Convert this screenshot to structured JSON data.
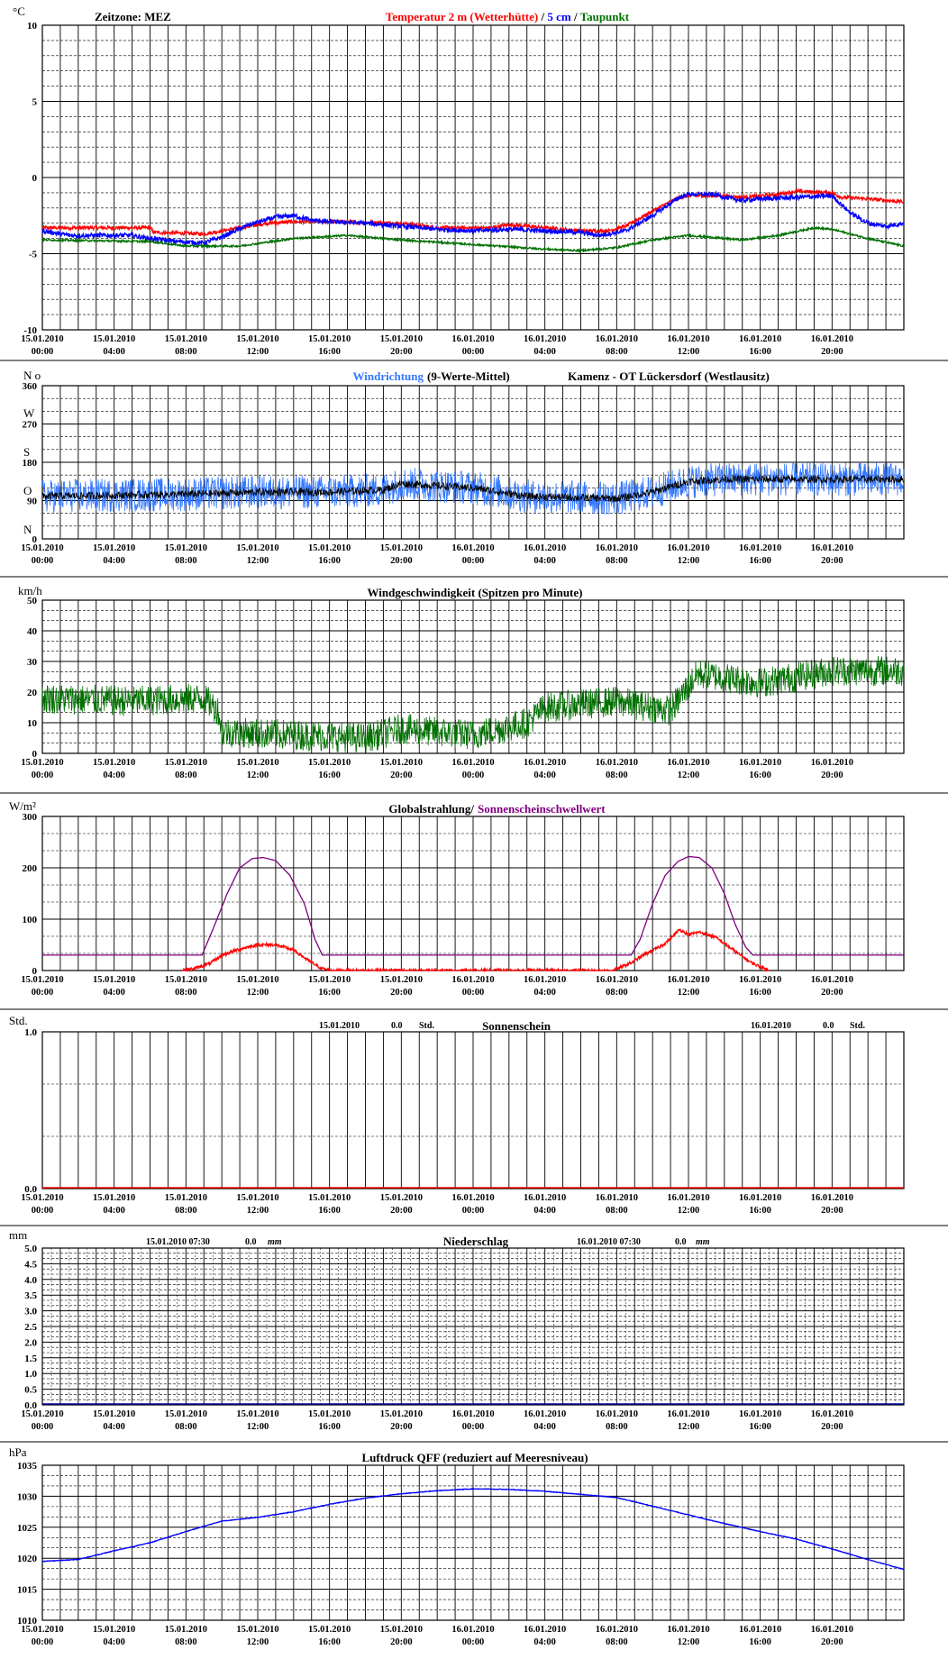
{
  "colors": {
    "red": "#ff0000",
    "blue": "#0000ff",
    "green": "#007000",
    "lightblue": "#3377ff",
    "purple": "#800080",
    "navy": "#0000a0"
  },
  "x_labels": [
    [
      "15.01.2010",
      "00:00"
    ],
    [
      "15.01.2010",
      "04:00"
    ],
    [
      "15.01.2010",
      "08:00"
    ],
    [
      "15.01.2010",
      "12:00"
    ],
    [
      "15.01.2010",
      "16:00"
    ],
    [
      "15.01.2010",
      "20:00"
    ],
    [
      "16.01.2010",
      "00:00"
    ],
    [
      "16.01.2010",
      "04:00"
    ],
    [
      "16.01.2010",
      "08:00"
    ],
    [
      "16.01.2010",
      "12:00"
    ],
    [
      "16.01.2010",
      "16:00"
    ],
    [
      "16.01.2010",
      "20:00"
    ]
  ],
  "header": {
    "zeitzone": "Zeitzone: MEZ",
    "temp_title_red": "Temperatur 2 m (Wetterhütte)",
    "temp_title_sep": " / ",
    "temp_title_blue": "5 cm",
    "temp_title_sep2": " / ",
    "temp_title_green": "Taupunkt"
  },
  "wind_header": {
    "title_blue": "Windrichtung",
    "title_rest": "(9-Werte-Mittel)",
    "station": "Kamenz - OT Lückersdorf (Westlausitz)",
    "dirs": [
      "N",
      "O",
      "S",
      "W",
      "N"
    ],
    "no_label": "N o"
  },
  "sun_info": {
    "d1": "15.01.2010",
    "v1": "0.0",
    "u1": "Std.",
    "d2": "16.01.2010",
    "v2": "0.0",
    "u2": "Std."
  },
  "rain_info": {
    "d1": "15.01.2010 07:30",
    "v1": "0.0",
    "u1": "mm",
    "d2": "16.01.2010 07:30",
    "v2": "0.0",
    "u2": "mm"
  },
  "chart_data": [
    {
      "type": "line",
      "unit": "°C",
      "ylim": [
        -10,
        10
      ],
      "yticks": [
        "10",
        "5",
        "0",
        "-5",
        "-10"
      ],
      "ytick_values": [
        10,
        5,
        0,
        -5,
        -10
      ],
      "xlim_hours": [
        0,
        48
      ],
      "series": [
        {
          "name": "Temperatur 2 m (Wetterhütte)",
          "color": "#ff0000",
          "noise": 0.12,
          "x": [
            0,
            6,
            6.2,
            9,
            9.5,
            11,
            12.5,
            14,
            16,
            20,
            22,
            25,
            26,
            28,
            30,
            31.5,
            32.5,
            34,
            35.5,
            36,
            38,
            39,
            41,
            42,
            44,
            44.5,
            46,
            48
          ],
          "y": [
            -3.3,
            -3.3,
            -3.6,
            -3.7,
            -3.6,
            -3.3,
            -3.0,
            -2.9,
            -2.9,
            -3.0,
            -3.3,
            -3.3,
            -3.1,
            -3.3,
            -3.5,
            -3.5,
            -3.2,
            -2.2,
            -1.3,
            -1.2,
            -1.2,
            -1.3,
            -1.1,
            -0.9,
            -1.0,
            -1.3,
            -1.4,
            -1.6
          ]
        },
        {
          "name": "5 cm",
          "color": "#0000ff",
          "noise": 0.15,
          "x": [
            0,
            1.5,
            5,
            6,
            7.5,
            9,
            10,
            11.5,
            13,
            14,
            15,
            16,
            18,
            20,
            22,
            24,
            26,
            28,
            30,
            31,
            32.5,
            34,
            35.5,
            36,
            37.5,
            38,
            39,
            40,
            44,
            45,
            46,
            47,
            48
          ],
          "y": [
            -3.5,
            -3.8,
            -3.8,
            -4.0,
            -4.2,
            -4.3,
            -3.9,
            -3.1,
            -2.6,
            -2.5,
            -2.8,
            -2.9,
            -3.0,
            -3.2,
            -3.4,
            -3.5,
            -3.4,
            -3.5,
            -3.6,
            -3.8,
            -3.5,
            -2.5,
            -1.3,
            -1.1,
            -1.1,
            -1.3,
            -1.5,
            -1.4,
            -1.2,
            -2.3,
            -3.0,
            -3.2,
            -3.0
          ]
        },
        {
          "name": "Taupunkt",
          "color": "#007000",
          "noise": 0.06,
          "x": [
            0,
            6,
            8,
            11,
            14,
            17,
            20,
            24,
            28,
            30,
            32,
            34,
            36,
            38,
            39,
            41,
            43,
            44,
            46,
            48
          ],
          "y": [
            -4.1,
            -4.2,
            -4.5,
            -4.5,
            -4.0,
            -3.8,
            -4.1,
            -4.4,
            -4.7,
            -4.8,
            -4.6,
            -4.1,
            -3.8,
            -4.0,
            -4.1,
            -3.8,
            -3.3,
            -3.4,
            -4.0,
            -4.5
          ]
        }
      ]
    },
    {
      "type": "line",
      "unit": "",
      "ylim": [
        0,
        360
      ],
      "yticks": [
        "360",
        "270",
        "180",
        "90",
        "0"
      ],
      "ytick_values": [
        360,
        270,
        180,
        90,
        0
      ],
      "xlim_hours": [
        0,
        48
      ],
      "series": [
        {
          "name": "Windrichtung",
          "color": "#3377ff",
          "noise": 40,
          "x": [
            0,
            8,
            12,
            16,
            19,
            20,
            24,
            27,
            32,
            34,
            36,
            38,
            40,
            44,
            48
          ],
          "y": [
            100,
            105,
            110,
            110,
            115,
            130,
            120,
            100,
            95,
            110,
            135,
            140,
            140,
            140,
            140
          ]
        },
        {
          "name": "9-Werte-Mittel",
          "color": "#000000",
          "noise": 9,
          "x": [
            0,
            8,
            12,
            16,
            19,
            20,
            24,
            27,
            32,
            34,
            36,
            38,
            40,
            44,
            48
          ],
          "y": [
            100,
            105,
            110,
            110,
            115,
            130,
            120,
            100,
            95,
            110,
            135,
            140,
            140,
            140,
            140
          ]
        }
      ]
    },
    {
      "type": "line",
      "unit": "km/h",
      "ylim": [
        0,
        50
      ],
      "title": "Windgeschwindigkeit (Spitzen pro Minute)",
      "yticks": [
        "50",
        "40",
        "30",
        "20",
        "10",
        "0"
      ],
      "ytick_values": [
        50,
        40,
        30,
        20,
        10,
        0
      ],
      "xlim_hours": [
        0,
        48
      ],
      "series": [
        {
          "name": "Windgeschwindigkeit",
          "color": "#007000",
          "noise": 5,
          "x": [
            0,
            5,
            9,
            9.8,
            10,
            14,
            18,
            20,
            24,
            27,
            28,
            32,
            35,
            36,
            36.5,
            40,
            44,
            48
          ],
          "y": [
            18,
            17,
            18,
            14,
            7,
            6,
            5,
            8,
            6,
            10,
            15,
            17,
            14,
            22,
            26,
            23,
            27,
            27
          ]
        }
      ]
    },
    {
      "type": "line",
      "unit": "W/m²",
      "ylim": [
        0,
        300
      ],
      "yticks": [
        "300",
        "200",
        "100",
        "0"
      ],
      "ytick_values": [
        300,
        200,
        100,
        0
      ],
      "xlim_hours": [
        0,
        48
      ],
      "title_black": "Globalstrahlung/",
      "title_purple": "Sonnenscheinschwellwert",
      "series": [
        {
          "name": "Sonnenscheinschwellwert",
          "color": "#800080",
          "noise": 0,
          "x": [
            0,
            8.9,
            9.5,
            10.3,
            11,
            11.7,
            12.3,
            13,
            13.8,
            14.6,
            15.2,
            15.6,
            32.8,
            33.3,
            34,
            34.7,
            35.4,
            36,
            36.6,
            37.3,
            38,
            38.6,
            39.2,
            39.6,
            48
          ],
          "y": [
            30,
            30,
            80,
            150,
            200,
            218,
            220,
            214,
            185,
            130,
            60,
            30,
            30,
            60,
            130,
            185,
            212,
            222,
            220,
            200,
            150,
            90,
            45,
            30,
            30
          ]
        },
        {
          "name": "Globalstrahlung",
          "color": "#ff0000",
          "noise": 3,
          "x": [
            7.8,
            8.6,
            9.4,
            10,
            11,
            12,
            13,
            14,
            14.8,
            15.5,
            16,
            31.8,
            32.8,
            33.5,
            34.5,
            35,
            35.5,
            36,
            36.6,
            37.5,
            38.5,
            39.5,
            40.5
          ],
          "y": [
            0,
            5,
            15,
            30,
            42,
            50,
            50,
            40,
            20,
            5,
            0,
            0,
            15,
            30,
            48,
            62,
            80,
            70,
            75,
            65,
            40,
            15,
            0
          ]
        }
      ]
    },
    {
      "type": "bar",
      "unit": "Std.",
      "ylim": [
        0,
        1.0
      ],
      "title": "Sonnenschein",
      "yticks": [
        "1.0",
        "0.0"
      ],
      "ytick_values": [
        1.0,
        0.0
      ],
      "xlim_hours": [
        0,
        48
      ],
      "series": [
        {
          "name": "Sonnenschein",
          "color": "#ff0000",
          "values": [
            0,
            0
          ]
        }
      ]
    },
    {
      "type": "bar",
      "unit": "mm",
      "ylim": [
        0,
        5.0
      ],
      "title": "Niederschlag",
      "yticks": [
        "5.0",
        "4.5",
        "4.0",
        "3.5",
        "3.0",
        "2.5",
        "2.0",
        "1.5",
        "1.0",
        "0.5",
        "0.0"
      ],
      "ytick_values": [
        5.0,
        4.5,
        4.0,
        3.5,
        3.0,
        2.5,
        2.0,
        1.5,
        1.0,
        0.5,
        0.0
      ],
      "xlim_hours": [
        0,
        48
      ],
      "series": [
        {
          "name": "Niederschlag",
          "color": "#0000a0",
          "values": [
            0,
            0
          ]
        }
      ]
    },
    {
      "type": "line",
      "unit": "hPa",
      "ylim": [
        1010,
        1035
      ],
      "title": "Luftdruck QFF (reduziert auf Meeresniveau)",
      "yticks": [
        "1035",
        "1030",
        "1025",
        "1020",
        "1015",
        "1010"
      ],
      "ytick_values": [
        1035,
        1030,
        1025,
        1020,
        1015,
        1010
      ],
      "xlim_hours": [
        0,
        48
      ],
      "series": [
        {
          "name": "Luftdruck QFF",
          "color": "#0000ff",
          "noise": 0.05,
          "x": [
            0,
            2,
            4,
            6,
            8,
            10,
            12,
            14,
            16,
            18,
            20,
            22,
            24,
            26,
            28,
            30,
            32,
            34,
            36,
            38,
            40,
            42,
            44,
            46,
            48
          ],
          "y": [
            1019.5,
            1019.8,
            1021.2,
            1022.5,
            1024.3,
            1026.0,
            1026.6,
            1027.5,
            1028.7,
            1029.7,
            1030.4,
            1030.9,
            1031.2,
            1031.1,
            1030.8,
            1030.3,
            1029.8,
            1028.4,
            1027.0,
            1025.6,
            1024.3,
            1023.1,
            1021.5,
            1019.8,
            1018.2
          ]
        }
      ]
    }
  ]
}
